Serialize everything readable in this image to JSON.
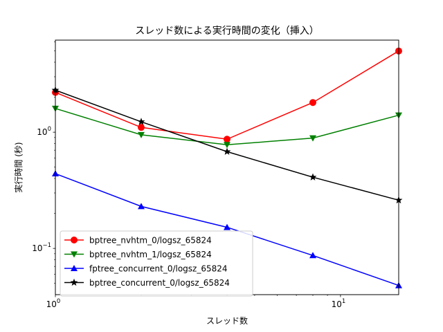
{
  "chart_data": {
    "type": "line",
    "title": "スレッド数による実行時間の変化（挿入）",
    "xlabel": "スレッド数",
    "ylabel": "実行時間 (秒)",
    "xscale": "log",
    "yscale": "log",
    "xlim": [
      1,
      16
    ],
    "ylim": [
      0.04,
      6.2
    ],
    "x": [
      1,
      2,
      4,
      8,
      16
    ],
    "x_ticks": [
      {
        "value": 1,
        "label": "10",
        "exp": "0"
      },
      {
        "value": 10,
        "label": "10",
        "exp": "1"
      }
    ],
    "y_ticks": [
      {
        "value": 0.1,
        "label": "10",
        "exp": "−1"
      },
      {
        "value": 1,
        "label": "10",
        "exp": "0"
      }
    ],
    "grid": false,
    "legend_position": "lower-left",
    "series": [
      {
        "name": "bptree_nvhtm_0/logsz_65824",
        "color": "#ff0000",
        "marker": "circle",
        "values": [
          2.2,
          1.1,
          0.87,
          1.8,
          5.0
        ]
      },
      {
        "name": "bptree_nvhtm_1/logsz_65824",
        "color": "#008000",
        "marker": "triangle-down",
        "values": [
          1.6,
          0.95,
          0.78,
          0.89,
          1.4
        ]
      },
      {
        "name": "fptree_concurrent_0/logsz_65824",
        "color": "#0000ff",
        "marker": "triangle-up",
        "values": [
          0.44,
          0.23,
          0.152,
          0.087,
          0.048
        ]
      },
      {
        "name": "bptree_concurrent_0/logsz_65824",
        "color": "#000000",
        "marker": "star",
        "values": [
          2.3,
          1.23,
          0.68,
          0.41,
          0.26
        ]
      }
    ]
  }
}
